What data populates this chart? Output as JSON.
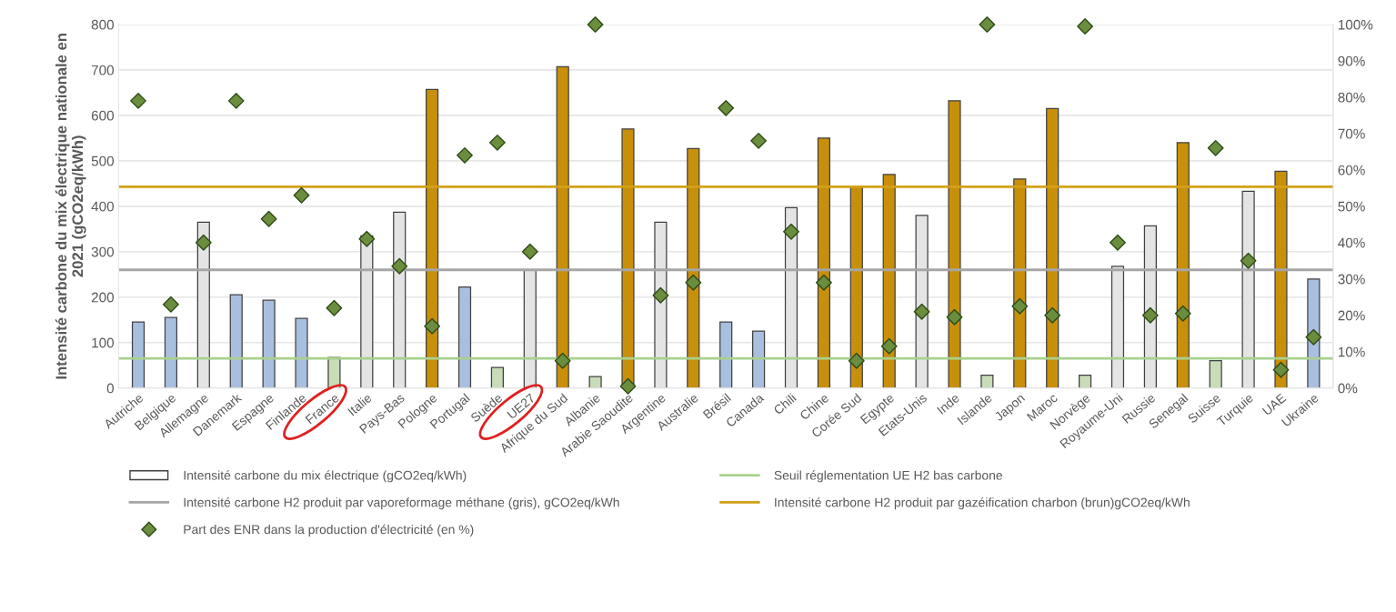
{
  "chart_data": {
    "type": "bar",
    "ylabel": "Intensité carbone du mix électrique nationale en\n2021 (gCO2eq/kWh)",
    "categories": [
      "Autriche",
      "Belgique",
      "Allemagne",
      "Danemark",
      "Espagne",
      "Finlande",
      "France",
      "Italie",
      "Pays-Bas",
      "Pologne",
      "Portugal",
      "Suède",
      "UE27",
      "Afrique du Sud",
      "Albanie",
      "Arabie Saoudite",
      "Argentine",
      "Australie",
      "Brésil",
      "Canada",
      "Chili",
      "Chine",
      "Corée Sud",
      "Egypte",
      "Etats-Unis",
      "Inde",
      "Islande",
      "Japon",
      "Maroc",
      "Norvège",
      "Royaume-Uni",
      "Russie",
      "Senegal",
      "Suisse",
      "Turquie",
      "UAE",
      "Ukraine"
    ],
    "series": [
      {
        "type": "bar",
        "name": "Intensité carbone du mix électrique (gCO2eq/kWh)",
        "color": "#ffffff",
        "values": [
          145,
          155,
          365,
          205,
          193,
          153,
          67,
          335,
          387,
          657,
          222,
          45,
          260,
          707,
          25,
          570,
          365,
          527,
          145,
          125,
          397,
          550,
          443,
          470,
          380,
          632,
          28,
          460,
          615,
          28,
          268,
          357,
          540,
          60,
          433,
          477,
          240
        ],
        "colors": [
          "#a9bfe0",
          "#a9bfe0",
          "#e4e4e4",
          "#a9bfe0",
          "#a9bfe0",
          "#a9bfe0",
          "#c9dcb8",
          "#e4e4e4",
          "#e4e4e4",
          "#c8900a",
          "#a9bfe0",
          "#c9dcb8",
          "#e4e4e4",
          "#c8900a",
          "#c9dcb8",
          "#c8900a",
          "#e4e4e4",
          "#c8900a",
          "#a9bfe0",
          "#a9bfe0",
          "#e4e4e4",
          "#c8900a",
          "#c8900a",
          "#c8900a",
          "#e4e4e4",
          "#c8900a",
          "#c9dcb8",
          "#c8900a",
          "#c8900a",
          "#c9dcb8",
          "#e4e4e4",
          "#e4e4e4",
          "#c8900a",
          "#c9dcb8",
          "#e4e4e4",
          "#c8900a",
          "#a9bfe0"
        ]
      },
      {
        "type": "scatter",
        "axis": "y2",
        "marker": "diamond",
        "name": "Part des ENR dans la production d'électricité (en %)",
        "color": "#6b8e3e",
        "values": [
          79,
          23,
          40,
          79,
          46.5,
          53,
          22,
          41,
          33.5,
          17,
          64,
          67.5,
          37.5,
          7.5,
          100,
          0.5,
          25.5,
          29,
          77,
          68,
          43,
          29,
          7.5,
          11.5,
          21,
          19.5,
          100,
          22.5,
          20,
          99.5,
          40,
          20,
          20.5,
          66,
          35,
          5,
          14
        ]
      }
    ],
    "ref_lines": [
      {
        "axis": "y",
        "value": 65,
        "label": "Seuil réglementation UE H2 bas carbone",
        "color": "#a9d18e"
      },
      {
        "axis": "y",
        "value": 260,
        "label": "Intensité carbone H2 produit par vaporeformage méthane (gris), gCO2eq/kWh",
        "color": "#a6a6a6"
      },
      {
        "axis": "y",
        "value": 443,
        "label": "Intensité carbone H2 produit par gazéification charbon (brun)gCO2eq/kWh",
        "color": "#d4a017"
      }
    ],
    "ylim": [
      0,
      800
    ],
    "yticks": [
      0,
      100,
      200,
      300,
      400,
      500,
      600,
      700,
      800
    ],
    "y2lim": [
      0,
      100
    ],
    "y2ticks": [
      {
        "value": 0,
        "label": "0%"
      },
      {
        "value": 10,
        "label": "10%"
      },
      {
        "value": 20,
        "label": "20%"
      },
      {
        "value": 30,
        "label": "30%"
      },
      {
        "value": 40,
        "label": "40%"
      },
      {
        "value": 50,
        "label": "50%"
      },
      {
        "value": 60,
        "label": "60%"
      },
      {
        "value": 70,
        "label": "70%"
      },
      {
        "value": 80,
        "label": "80%"
      },
      {
        "value": 90,
        "label": "90%"
      },
      {
        "value": 100,
        "label": "100%"
      }
    ],
    "grid": "y",
    "legend": "bottom"
  }
}
